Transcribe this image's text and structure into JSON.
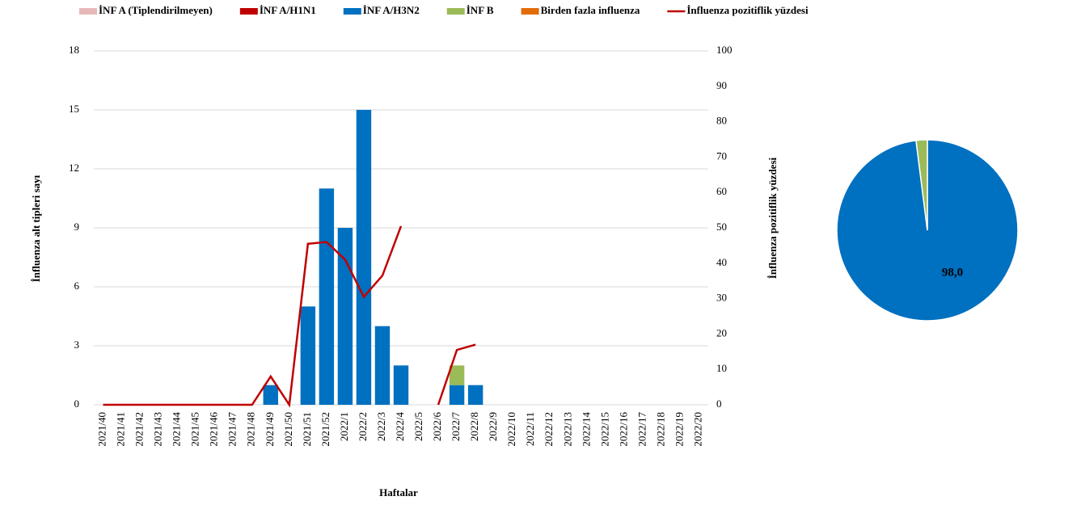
{
  "chart_data": [
    {
      "type": "bar",
      "categories": [
        "2021/40",
        "2021/41",
        "2021/42",
        "2021/43",
        "2021/44",
        "2021/45",
        "2021/46",
        "2021/47",
        "2021/48",
        "2021/49",
        "2021/50",
        "2021/51",
        "2021/52",
        "2022/1",
        "2022/2",
        "2022/3",
        "2022/4",
        "2022/5",
        "2022/6",
        "2022/7",
        "2022/8",
        "2022/9",
        "2022/10",
        "2022/11",
        "2022/12",
        "2022/13",
        "2022/14",
        "2022/15",
        "2022/16",
        "2022/17",
        "2022/18",
        "2022/19",
        "2022/20"
      ],
      "x_label": "Haftalar",
      "y_label": "İnfluenza alt tipleri sayı",
      "y2_label": "İnfluenza pozitiflik yüzdesi",
      "ylim": [
        0,
        18
      ],
      "yticks": [
        0,
        3,
        6,
        9,
        12,
        15,
        18
      ],
      "y2lim": [
        0,
        100
      ],
      "y2ticks": [
        0,
        10,
        20,
        30,
        40,
        50,
        60,
        70,
        80,
        90,
        100
      ],
      "grid": true,
      "legend": "top",
      "series": [
        {
          "name": "İNF A (Tiplendirilmeyen)",
          "color": "#e6b9b8",
          "values": [
            0,
            0,
            0,
            0,
            0,
            0,
            0,
            0,
            0,
            0,
            0,
            0,
            0,
            0,
            0,
            0,
            0,
            0,
            0,
            0,
            0,
            0,
            0,
            0,
            0,
            0,
            0,
            0,
            0,
            0,
            0,
            0,
            0
          ]
        },
        {
          "name": "İNF A/H1N1",
          "color": "#c00000",
          "values": [
            0,
            0,
            0,
            0,
            0,
            0,
            0,
            0,
            0,
            0,
            0,
            0,
            0,
            0,
            0,
            0,
            0,
            0,
            0,
            0,
            0,
            0,
            0,
            0,
            0,
            0,
            0,
            0,
            0,
            0,
            0,
            0,
            0
          ]
        },
        {
          "name": "İNF A/H3N2",
          "color": "#0070c0",
          "values": [
            0,
            0,
            0,
            0,
            0,
            0,
            0,
            0,
            0,
            1,
            0,
            5,
            11,
            9,
            15,
            4,
            2,
            0,
            0,
            1,
            1,
            0,
            0,
            0,
            0,
            0,
            0,
            0,
            0,
            0,
            0,
            0,
            0
          ]
        },
        {
          "name": "İNF B",
          "color": "#9bbb59",
          "values": [
            0,
            0,
            0,
            0,
            0,
            0,
            0,
            0,
            0,
            0,
            0,
            0,
            0,
            0,
            0,
            0,
            0,
            0,
            0,
            1,
            0,
            0,
            0,
            0,
            0,
            0,
            0,
            0,
            0,
            0,
            0,
            0,
            0
          ]
        },
        {
          "name": "Birden fazla influenza",
          "color": "#e36c0a",
          "values": [
            0,
            0,
            0,
            0,
            0,
            0,
            0,
            0,
            0,
            0,
            0,
            0,
            0,
            0,
            0,
            0,
            0,
            0,
            0,
            0,
            0,
            0,
            0,
            0,
            0,
            0,
            0,
            0,
            0,
            0,
            0,
            0,
            0
          ]
        },
        {
          "name": "İnfluenza pozitiflik yüzdesi",
          "type": "line",
          "axis": "y2",
          "color": "#c00000",
          "values": [
            0,
            0,
            0,
            0,
            0,
            0,
            0,
            0,
            0,
            8,
            0,
            45.5,
            46,
            41,
            30.5,
            36.5,
            50.5,
            null,
            0,
            15.5,
            17,
            null,
            null,
            null,
            null,
            null,
            null,
            null,
            null,
            null,
            null,
            null,
            null
          ]
        }
      ]
    },
    {
      "type": "pie",
      "values": [
        98.0,
        2.0
      ],
      "value_labels": [
        "98,0",
        null
      ],
      "colors": [
        "#0070c0",
        "#9bbb59"
      ]
    }
  ]
}
